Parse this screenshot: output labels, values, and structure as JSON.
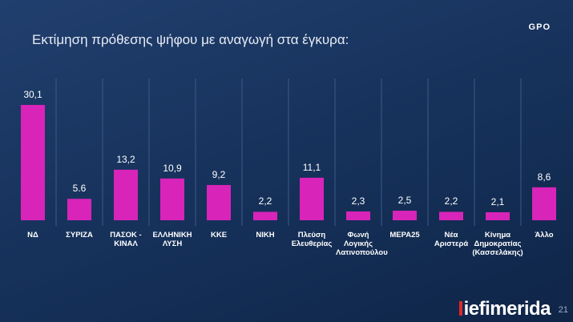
{
  "brand": "GPO",
  "footer_brand": "iefimerida",
  "page_number": "21",
  "chart_data": {
    "type": "bar",
    "title": "Εκτίμηση πρόθεσης ψήφου με αναγωγή στα έγκυρα:",
    "categories": [
      "ΝΔ",
      "ΣΥΡΙΖΑ",
      "ΠΑΣΟΚ - ΚΙΝΑΛ",
      "ΕΛΛΗΝΙΚΗ ΛΥΣΗ",
      "ΚΚΕ",
      "ΝΙΚΗ",
      "Πλεύση Ελευθερίας",
      "Φωνή Λογικής Λατινοπούλου",
      "ΜΕΡΑ25",
      "Νέα Αριστερά",
      "Κίνημα Δημοκρατίας (Κασσελάκης)",
      "Άλλο"
    ],
    "values": [
      30.1,
      5.6,
      13.2,
      10.9,
      9.2,
      2.2,
      11.1,
      2.3,
      2.5,
      2.2,
      2.1,
      8.6
    ],
    "value_labels": [
      "30,1",
      "5.6",
      "13,2",
      "10,9",
      "9,2",
      "2,2",
      "11,1",
      "2,3",
      "2,5",
      "2,2",
      "2,1",
      "8,6"
    ],
    "color": "#d824b9"
  }
}
